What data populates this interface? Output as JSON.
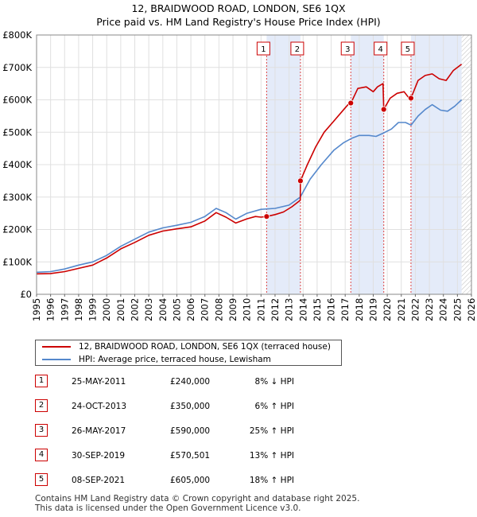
{
  "title_line1": "12, BRAIDWOOD ROAD, LONDON, SE6 1QX",
  "title_line2": "Price paid vs. HM Land Registry's House Price Index (HPI)",
  "chart_data": {
    "type": "line",
    "x_range": [
      1995,
      2026
    ],
    "ylim": [
      0,
      800000
    ],
    "y_ticks": [
      0,
      100000,
      200000,
      300000,
      400000,
      500000,
      600000,
      700000,
      800000
    ],
    "y_tick_labels": [
      "£0",
      "£100K",
      "£200K",
      "£300K",
      "£400K",
      "£500K",
      "£600K",
      "£700K",
      "£800K"
    ],
    "x_ticks": [
      1995,
      1996,
      1997,
      1998,
      1999,
      2000,
      2001,
      2002,
      2003,
      2004,
      2005,
      2006,
      2007,
      2008,
      2009,
      2010,
      2011,
      2012,
      2013,
      2014,
      2015,
      2016,
      2017,
      2018,
      2019,
      2020,
      2021,
      2022,
      2023,
      2024,
      2025,
      2026
    ],
    "x_tick_labels": [
      "1995",
      "1996",
      "1997",
      "1998",
      "1999",
      "2000",
      "2001",
      "2002",
      "2003",
      "2004",
      "2005",
      "2006",
      "2007",
      "2008",
      "2009",
      "2010",
      "2011",
      "2012",
      "2013",
      "2014",
      "2015",
      "2016",
      "2017",
      "2018",
      "2019",
      "2020",
      "2021",
      "2022",
      "2023",
      "2024",
      "2025",
      "2026"
    ],
    "series": [
      {
        "name": "12, BRAIDWOOD ROAD, LONDON, SE6 1QX (terraced house)",
        "color": "#cc0000",
        "x": [
          1995.0,
          1996.0,
          1997.0,
          1998.0,
          1999.0,
          2000.0,
          2001.0,
          2002.0,
          2003.0,
          2004.0,
          2005.0,
          2006.0,
          2007.0,
          2007.8,
          2008.5,
          2009.2,
          2010.0,
          2010.6,
          2011.0,
          2011.4,
          2012.0,
          2012.6,
          2013.2,
          2013.8,
          2013.81,
          2014.3,
          2014.9,
          2015.5,
          2016.2,
          2016.9,
          2017.4,
          2017.41,
          2017.9,
          2018.5,
          2019.0,
          2019.3,
          2019.7,
          2019.75,
          2020.2,
          2020.7,
          2021.2,
          2021.5,
          2021.69,
          2022.2,
          2022.7,
          2023.2,
          2023.7,
          2024.2,
          2024.7,
          2025.3
        ],
        "values": [
          63000,
          64000,
          70000,
          80000,
          90000,
          112000,
          140000,
          160000,
          182000,
          195000,
          202000,
          208000,
          226000,
          252000,
          238000,
          220000,
          233000,
          240000,
          238000,
          240000,
          246000,
          254000,
          270000,
          290000,
          350000,
          400000,
          455000,
          500000,
          535000,
          570000,
          595000,
          590000,
          635000,
          640000,
          625000,
          640000,
          650000,
          570501,
          605000,
          620000,
          625000,
          608000,
          605000,
          660000,
          675000,
          680000,
          665000,
          660000,
          690000,
          710000
        ]
      },
      {
        "name": "HPI: Average price, terraced house, Lewisham",
        "color": "#5588cc",
        "x": [
          1995.0,
          1996.0,
          1997.0,
          1998.0,
          1999.0,
          2000.0,
          2001.0,
          2002.0,
          2003.0,
          2004.0,
          2005.0,
          2006.0,
          2007.0,
          2007.8,
          2008.5,
          2009.2,
          2010.0,
          2011.0,
          2012.0,
          2013.0,
          2013.8,
          2014.5,
          2015.3,
          2016.2,
          2016.9,
          2017.5,
          2018.0,
          2018.7,
          2019.2,
          2019.7,
          2020.3,
          2020.8,
          2021.3,
          2021.7,
          2022.2,
          2022.7,
          2023.2,
          2023.8,
          2024.3,
          2024.8,
          2025.3
        ],
        "values": [
          68000,
          70000,
          78000,
          90000,
          100000,
          120000,
          148000,
          170000,
          192000,
          205000,
          213000,
          222000,
          240000,
          265000,
          252000,
          232000,
          250000,
          262000,
          265000,
          275000,
          300000,
          355000,
          400000,
          445000,
          468000,
          482000,
          490000,
          490000,
          487000,
          497000,
          510000,
          530000,
          530000,
          522000,
          550000,
          570000,
          585000,
          568000,
          565000,
          580000,
          600000
        ]
      }
    ],
    "sales": [
      {
        "label": "1",
        "x": 2011.4,
        "price": 240000
      },
      {
        "label": "2",
        "x": 2013.81,
        "price": 350000
      },
      {
        "label": "3",
        "x": 2017.4,
        "price": 590000
      },
      {
        "label": "4",
        "x": 2019.75,
        "price": 570501
      },
      {
        "label": "5",
        "x": 2021.69,
        "price": 605000
      }
    ],
    "shaded_ranges": [
      [
        2011.4,
        2013.81
      ],
      [
        2017.4,
        2019.75
      ],
      [
        2021.69,
        2025.3
      ]
    ],
    "hatch_from": 2025.3
  },
  "legend": {
    "property_label": "12, BRAIDWOOD ROAD, LONDON, SE6 1QX (terraced house)",
    "hpi_label": "HPI: Average price, terraced house, Lewisham",
    "property_color": "#cc0000",
    "hpi_color": "#5588cc"
  },
  "transactions": [
    {
      "num": "1",
      "date": "25-MAY-2011",
      "price": "£240,000",
      "hpi": "8% ↓ HPI"
    },
    {
      "num": "2",
      "date": "24-OCT-2013",
      "price": "£350,000",
      "hpi": "6% ↑ HPI"
    },
    {
      "num": "3",
      "date": "26-MAY-2017",
      "price": "£590,000",
      "hpi": "25% ↑ HPI"
    },
    {
      "num": "4",
      "date": "30-SEP-2019",
      "price": "£570,501",
      "hpi": "13% ↑ HPI"
    },
    {
      "num": "5",
      "date": "08-SEP-2021",
      "price": "£605,000",
      "hpi": "18% ↑ HPI"
    }
  ],
  "footer_line1": "Contains HM Land Registry data © Crown copyright and database right 2025.",
  "footer_line2": "This data is licensed under the Open Government Licence v3.0."
}
